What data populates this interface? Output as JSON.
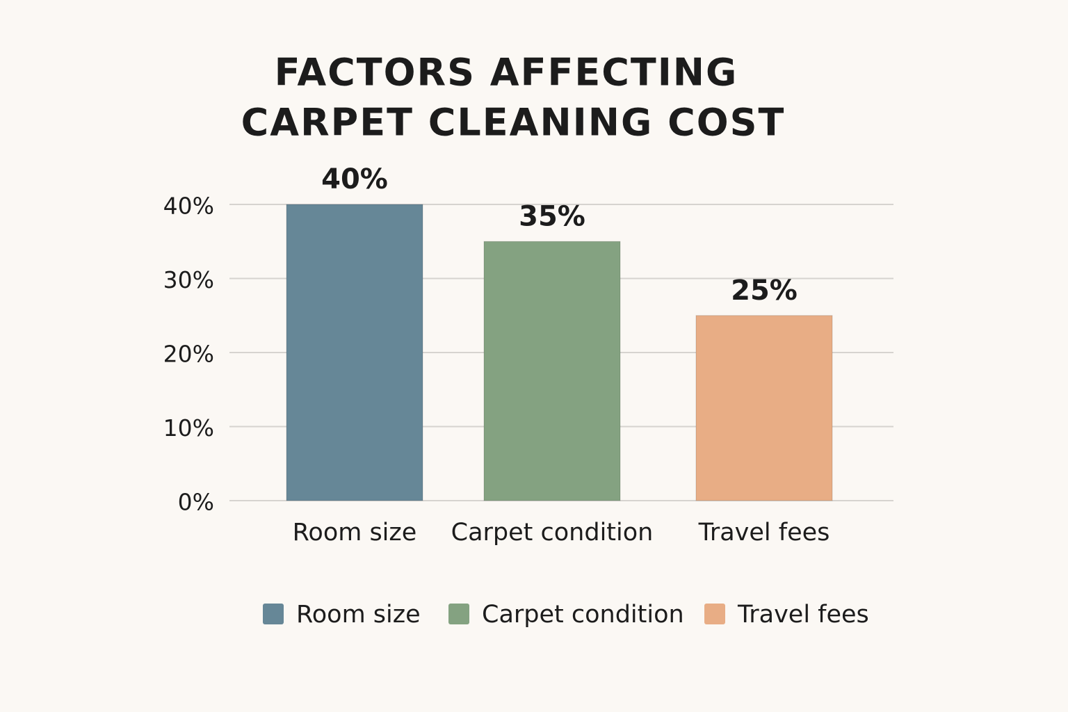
{
  "chart_data": {
    "type": "bar",
    "title": [
      "FACTORS AFFECTING",
      "CARPET CLEANING COST"
    ],
    "categories": [
      "Room size",
      "Carpet condition",
      "Travel fees"
    ],
    "values": [
      40,
      35,
      25
    ],
    "value_labels": [
      "40%",
      "35%",
      "25%"
    ],
    "colors": [
      "#668797",
      "#84a281",
      "#e8ad85"
    ],
    "ylim": [
      0,
      40
    ],
    "yticks": [
      {
        "value": 0,
        "label": "0%"
      },
      {
        "value": 10,
        "label": "10%"
      },
      {
        "value": 20,
        "label": "20%"
      },
      {
        "value": 30,
        "label": "30%"
      },
      {
        "value": 40,
        "label": "40%"
      }
    ],
    "grid": true,
    "legend": "bottom"
  }
}
